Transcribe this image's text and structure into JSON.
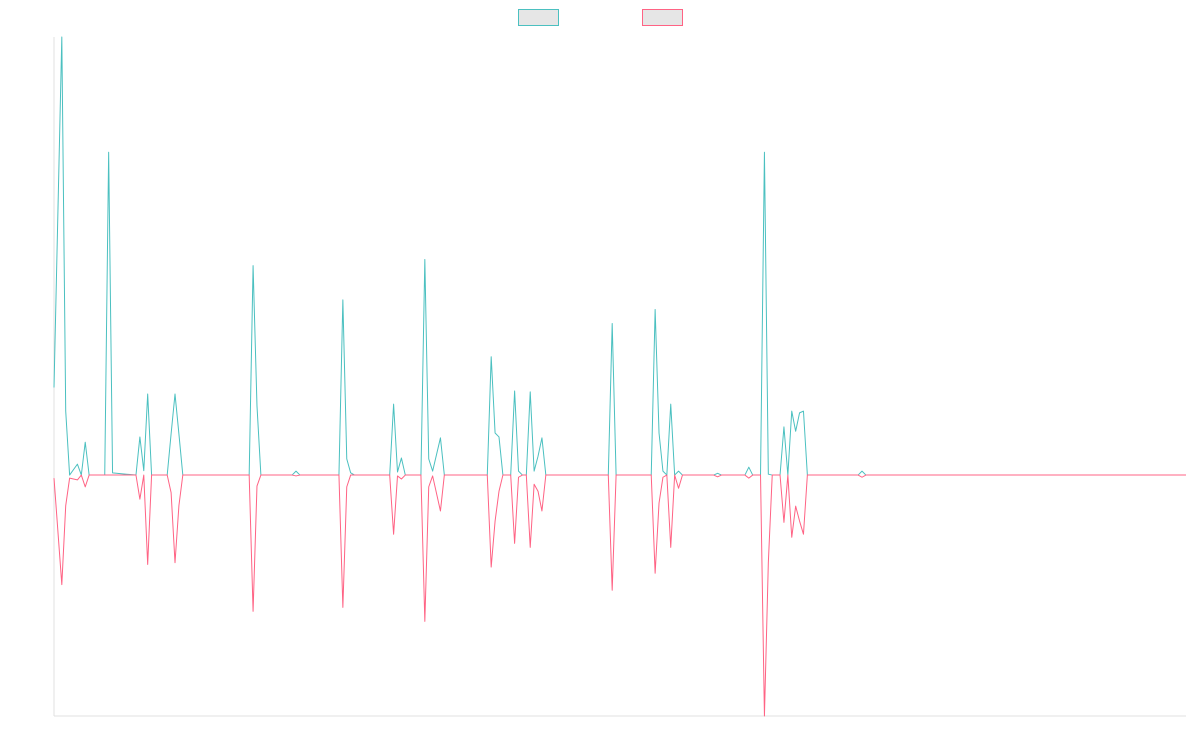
{
  "chart_data": {
    "type": "line",
    "legend": "top",
    "grid": false,
    "xlim": [
      0,
      290
    ],
    "ylim": [
      -0.55,
      1
    ],
    "x": [
      0,
      2,
      3,
      4,
      6,
      7,
      8,
      9,
      13,
      14,
      15,
      21,
      22,
      23,
      24,
      25,
      29,
      30,
      31,
      32,
      33,
      50,
      51,
      52,
      53,
      61,
      62,
      63,
      73,
      74,
      75,
      76,
      77,
      86,
      87,
      88,
      89,
      90,
      94,
      95,
      96,
      97,
      99,
      100,
      111,
      112,
      113,
      114,
      115,
      117,
      118,
      119,
      120,
      121,
      122,
      123,
      124,
      125,
      126,
      142,
      143,
      144,
      153,
      154,
      155,
      156,
      157,
      158,
      159,
      160,
      161,
      169,
      170,
      171,
      177,
      178,
      179,
      181,
      182,
      183,
      184,
      186,
      187,
      188,
      189,
      190,
      191,
      192,
      193,
      206,
      207,
      208,
      290
    ],
    "series": [
      {
        "color": "#4bc0c0",
        "values": [
          0.2,
          1,
          0.146,
          0,
          0.025,
          0,
          0.075,
          0,
          0,
          0.737,
          0.005,
          0,
          0.087,
          0.01,
          0.185,
          0,
          0,
          0.094,
          0.185,
          0.094,
          0,
          0,
          0.478,
          0.158,
          0,
          0,
          0.009,
          0,
          0,
          0.4,
          0.037,
          0.005,
          0,
          0,
          0.162,
          0.007,
          0.039,
          0,
          0,
          0.492,
          0.037,
          0.009,
          0.085,
          0,
          0,
          0.27,
          0.096,
          0.087,
          0,
          0,
          0.192,
          0.009,
          0,
          0,
          0.19,
          0.009,
          0.043,
          0.085,
          0,
          0,
          0.346,
          0,
          0,
          0.378,
          0.096,
          0.009,
          0,
          0.162,
          0,
          0.009,
          0,
          0,
          0.004,
          0,
          0,
          0.018,
          0,
          0,
          0.737,
          0.002,
          0,
          0,
          0.11,
          0,
          0.146,
          0.1,
          0.142,
          0.146,
          0,
          0,
          0.009,
          0,
          0
        ]
      },
      {
        "color": "#ff6384",
        "values": [
          -0.007,
          -0.25,
          -0.07,
          -0.007,
          -0.011,
          0,
          -0.027,
          0,
          0,
          0,
          0,
          0,
          -0.055,
          0,
          -0.204,
          0,
          0,
          -0.04,
          -0.2,
          -0.07,
          0,
          0,
          -0.311,
          -0.025,
          0,
          0,
          -0.002,
          0,
          0,
          -0.302,
          -0.027,
          0,
          0,
          0,
          -0.135,
          -0.002,
          -0.009,
          0,
          0,
          -0.334,
          -0.027,
          -0.002,
          -0.082,
          0,
          0,
          -0.21,
          -0.105,
          -0.037,
          0,
          0,
          -0.156,
          -0.005,
          0,
          0,
          -0.165,
          -0.021,
          -0.037,
          -0.082,
          0,
          0,
          -0.263,
          0,
          0,
          -0.224,
          -0.064,
          -0.005,
          0,
          -0.165,
          0,
          -0.03,
          0,
          0,
          -0.004,
          0,
          0,
          -0.007,
          0,
          0,
          -0.55,
          -0.2,
          0,
          0,
          -0.108,
          0,
          -0.142,
          -0.071,
          -0.105,
          -0.135,
          0,
          0,
          -0.005,
          0,
          0
        ]
      }
    ]
  }
}
